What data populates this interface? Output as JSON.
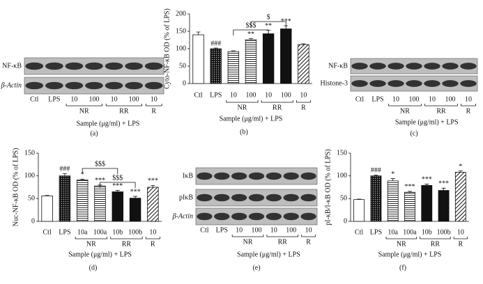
{
  "chart_data": [
    {
      "type": "bar",
      "ylabel": "Cyto-NF-κB OD (% of LPS)",
      "categories": [
        "Ctl",
        "LPS",
        "10",
        "100",
        "10",
        "100",
        "10"
      ],
      "values": [
        140,
        100,
        92,
        126,
        143,
        157,
        112
      ],
      "errors": [
        8,
        2,
        2,
        3,
        10,
        9,
        2
      ],
      "annotations": [
        null,
        "###",
        null,
        "**",
        "**",
        "***",
        null
      ],
      "bar_styles": [
        "white",
        "dots",
        "hlines",
        "hlines",
        "black",
        "black",
        "diag"
      ],
      "groups": [
        "NR",
        "RR",
        "R"
      ],
      "xlabel": "Sample (μg/ml) + LPS",
      "brackets": [
        "$$$",
        "$"
      ],
      "caption": "(b)",
      "ylim": [
        0,
        200
      ],
      "yticks": [
        0,
        50,
        100,
        150,
        200
      ]
    },
    {
      "type": "bar",
      "ylabel": "Nuc-NF-κB OD (% of LPS)",
      "categories": [
        "Ctl",
        "LPS",
        "10a",
        "100a",
        "10b",
        "100b",
        "10"
      ],
      "values": [
        56,
        100,
        91,
        78,
        65,
        51,
        75
      ],
      "errors": [
        1,
        5,
        2,
        2,
        3,
        4,
        4
      ],
      "annotations": [
        null,
        "###",
        "*",
        "***",
        "***",
        "***",
        "***"
      ],
      "bar_styles": [
        "white",
        "dots",
        "hlines",
        "hlines",
        "black",
        "black",
        "diag"
      ],
      "groups": [
        "NR",
        "RR",
        "R"
      ],
      "xlabel": "Sample (μg/ml) + LPS",
      "brackets": [
        "$$$",
        "$$$"
      ],
      "caption": "(d)",
      "ylim": [
        0,
        150
      ],
      "yticks": [
        0,
        50,
        100,
        150
      ]
    },
    {
      "type": "bar",
      "ylabel": "pI-κB/I-κB OD (% of LPS)",
      "categories": [
        "Ctl",
        "LPS",
        "10a",
        "100a",
        "10b",
        "100b",
        "10"
      ],
      "values": [
        48,
        100,
        89,
        64,
        79,
        68,
        108
      ],
      "errors": [
        1,
        2,
        5,
        2,
        3,
        5,
        3
      ],
      "annotations": [
        null,
        "###",
        "*",
        "***",
        "***",
        "***",
        "*"
      ],
      "bar_styles": [
        "white",
        "dots",
        "hlines",
        "hlines",
        "black",
        "black",
        "diag"
      ],
      "groups": [
        "NR",
        "RR",
        "R"
      ],
      "xlabel": "Sample (μg/ml) + LPS",
      "caption": "(f)",
      "ylim": [
        0,
        150
      ],
      "yticks": [
        0,
        50,
        100,
        150
      ]
    }
  ],
  "blots": [
    {
      "rows": [
        "NF-κB",
        "β-Actin"
      ],
      "lanes": [
        "Ctl",
        "LPS",
        "10",
        "100",
        "10",
        "100",
        "10"
      ],
      "groups": [
        "NR",
        "RR",
        "R"
      ],
      "xlabel": "Sample (μg/ml) + LPS",
      "caption": "(a)"
    },
    {
      "rows": [
        "NF-κB",
        "Histone-3"
      ],
      "lanes": [
        "Ctl",
        "LPS",
        "10",
        "100",
        "10",
        "100",
        "10"
      ],
      "groups": [
        "NR",
        "RR",
        "R"
      ],
      "xlabel": "Sample (μg/ml) + LPS",
      "caption": "(c)"
    },
    {
      "rows": [
        "IκB",
        "pIκB",
        "β-Actin"
      ],
      "lanes": [
        "Ctl",
        "LPS",
        "10",
        "100",
        "10",
        "100",
        "10"
      ],
      "groups": [
        "NR",
        "RR",
        "R"
      ],
      "xlabel": "Sample (μg/ml) + LPS",
      "caption": "(e)"
    }
  ]
}
